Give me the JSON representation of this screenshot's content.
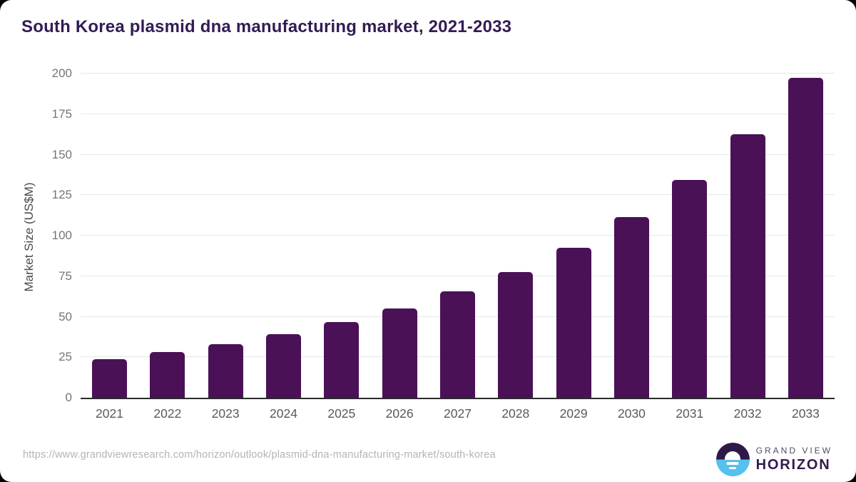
{
  "title": "South Korea plasmid dna manufacturing market, 2021-2033",
  "chart_data": {
    "type": "bar",
    "title": "South Korea plasmid dna manufacturing market, 2021-2033",
    "categories": [
      "2021",
      "2022",
      "2023",
      "2024",
      "2025",
      "2026",
      "2027",
      "2028",
      "2029",
      "2030",
      "2031",
      "2032",
      "2033"
    ],
    "values": [
      24,
      28,
      33,
      39,
      46.5,
      55,
      65.5,
      77.5,
      92.5,
      111.5,
      134.5,
      162.5,
      197.5
    ],
    "xlabel": "",
    "ylabel": "Market Size (US$M)",
    "ylim": [
      0,
      200
    ],
    "yticks": [
      0,
      25,
      50,
      75,
      100,
      125,
      150,
      175,
      200
    ],
    "grid": true,
    "legend": false,
    "bar_color": "#4a1157"
  },
  "colors": {
    "title": "#331c54",
    "bar": "#4a1157",
    "gridline": "#e7e7e7",
    "axis_line": "#2b2b2b",
    "tick_label": "#757575",
    "logo_dark": "#2e1a47",
    "logo_blue": "#56c1ec"
  },
  "footer": {
    "source_url": "https://www.grandviewresearch.com/horizon/outlook/plasmid-dna-manufacturing-market/south-korea",
    "logo": {
      "line1": "GRAND VIEW",
      "line2": "HORIZON"
    }
  }
}
